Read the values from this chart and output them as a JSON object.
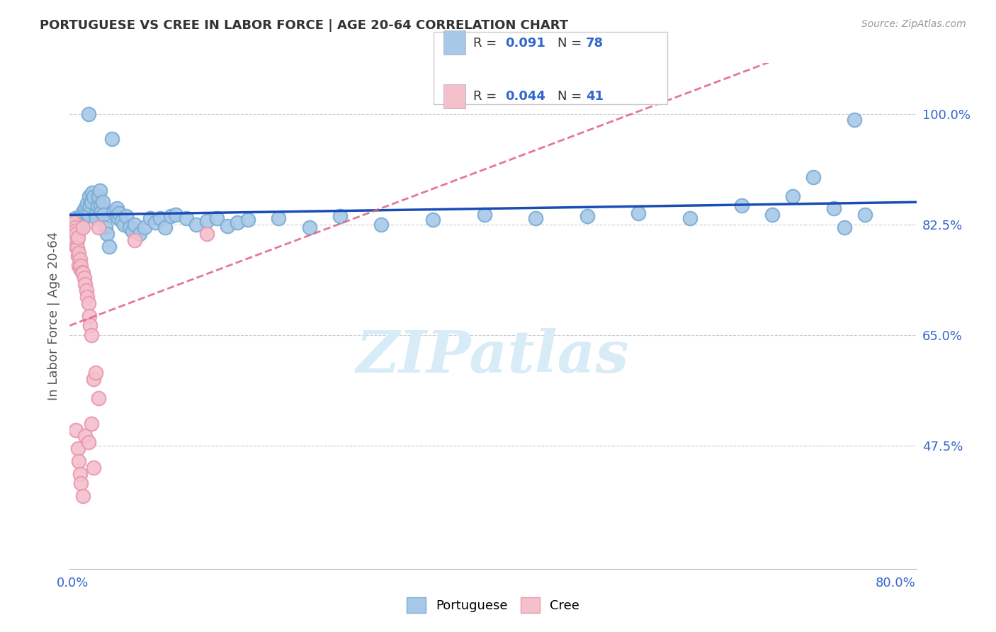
{
  "title": "PORTUGUESE VS CREE IN LABOR FORCE | AGE 20-64 CORRELATION CHART",
  "source": "Source: ZipAtlas.com",
  "ylabel": "In Labor Force | Age 20-64",
  "xlim": [
    -0.003,
    0.82
  ],
  "ylim": [
    0.28,
    1.08
  ],
  "x_tick_labels": [
    "0.0%",
    "80.0%"
  ],
  "x_tick_vals": [
    0.0,
    0.8
  ],
  "y_tick_labels_right": [
    "100.0%",
    "82.5%",
    "65.0%",
    "47.5%"
  ],
  "y_tick_vals_right": [
    1.0,
    0.825,
    0.65,
    0.475
  ],
  "portuguese_color": "#a8c8e8",
  "portuguese_edge_color": "#7aadd4",
  "cree_color": "#f4c0cc",
  "cree_edge_color": "#e898b0",
  "trendline_portuguese_color": "#1a4db5",
  "trendline_cree_color": "#e06080",
  "title_color": "#333333",
  "axis_label_color": "#3366cc",
  "source_color": "#999999",
  "grid_color": "#cccccc",
  "watermark_color": "#d8ecf8",
  "legend_R_color": "#333333",
  "legend_N_color": "#3366cc",
  "portuguese_points": [
    [
      0.001,
      0.83
    ],
    [
      0.002,
      0.835
    ],
    [
      0.003,
      0.825
    ],
    [
      0.004,
      0.828
    ],
    [
      0.005,
      0.832
    ],
    [
      0.006,
      0.82
    ],
    [
      0.007,
      0.838
    ],
    [
      0.008,
      0.822
    ],
    [
      0.009,
      0.83
    ],
    [
      0.01,
      0.845
    ],
    [
      0.011,
      0.84
    ],
    [
      0.012,
      0.85
    ],
    [
      0.013,
      0.842
    ],
    [
      0.014,
      0.858
    ],
    [
      0.015,
      0.84
    ],
    [
      0.015,
      1.0
    ],
    [
      0.016,
      0.87
    ],
    [
      0.017,
      0.855
    ],
    [
      0.018,
      0.86
    ],
    [
      0.019,
      0.875
    ],
    [
      0.02,
      0.868
    ],
    [
      0.022,
      0.84
    ],
    [
      0.023,
      0.835
    ],
    [
      0.024,
      0.855
    ],
    [
      0.025,
      0.87
    ],
    [
      0.026,
      0.878
    ],
    [
      0.027,
      0.855
    ],
    [
      0.028,
      0.845
    ],
    [
      0.029,
      0.86
    ],
    [
      0.03,
      0.84
    ],
    [
      0.032,
      0.82
    ],
    [
      0.033,
      0.81
    ],
    [
      0.035,
      0.79
    ],
    [
      0.038,
      0.96
    ],
    [
      0.04,
      0.845
    ],
    [
      0.042,
      0.838
    ],
    [
      0.043,
      0.85
    ],
    [
      0.044,
      0.835
    ],
    [
      0.045,
      0.842
    ],
    [
      0.048,
      0.83
    ],
    [
      0.05,
      0.825
    ],
    [
      0.052,
      0.838
    ],
    [
      0.055,
      0.82
    ],
    [
      0.058,
      0.815
    ],
    [
      0.06,
      0.825
    ],
    [
      0.065,
      0.81
    ],
    [
      0.07,
      0.82
    ],
    [
      0.075,
      0.835
    ],
    [
      0.08,
      0.828
    ],
    [
      0.085,
      0.835
    ],
    [
      0.09,
      0.82
    ],
    [
      0.095,
      0.838
    ],
    [
      0.1,
      0.84
    ],
    [
      0.11,
      0.835
    ],
    [
      0.12,
      0.825
    ],
    [
      0.13,
      0.83
    ],
    [
      0.14,
      0.835
    ],
    [
      0.15,
      0.822
    ],
    [
      0.16,
      0.828
    ],
    [
      0.17,
      0.832
    ],
    [
      0.2,
      0.835
    ],
    [
      0.23,
      0.82
    ],
    [
      0.26,
      0.838
    ],
    [
      0.3,
      0.825
    ],
    [
      0.35,
      0.832
    ],
    [
      0.4,
      0.84
    ],
    [
      0.45,
      0.835
    ],
    [
      0.5,
      0.838
    ],
    [
      0.55,
      0.842
    ],
    [
      0.6,
      0.835
    ],
    [
      0.65,
      0.855
    ],
    [
      0.68,
      0.84
    ],
    [
      0.7,
      0.87
    ],
    [
      0.72,
      0.9
    ],
    [
      0.74,
      0.85
    ],
    [
      0.75,
      0.82
    ],
    [
      0.76,
      0.99
    ],
    [
      0.77,
      0.84
    ]
  ],
  "cree_points": [
    [
      0.001,
      0.828
    ],
    [
      0.002,
      0.82
    ],
    [
      0.002,
      0.815
    ],
    [
      0.003,
      0.81
    ],
    [
      0.003,
      0.79
    ],
    [
      0.004,
      0.8
    ],
    [
      0.004,
      0.788
    ],
    [
      0.005,
      0.805
    ],
    [
      0.005,
      0.775
    ],
    [
      0.006,
      0.78
    ],
    [
      0.006,
      0.76
    ],
    [
      0.007,
      0.77
    ],
    [
      0.007,
      0.755
    ],
    [
      0.008,
      0.76
    ],
    [
      0.009,
      0.75
    ],
    [
      0.01,
      0.748
    ],
    [
      0.01,
      0.82
    ],
    [
      0.011,
      0.74
    ],
    [
      0.012,
      0.73
    ],
    [
      0.013,
      0.72
    ],
    [
      0.014,
      0.71
    ],
    [
      0.015,
      0.7
    ],
    [
      0.016,
      0.68
    ],
    [
      0.017,
      0.665
    ],
    [
      0.018,
      0.65
    ],
    [
      0.02,
      0.58
    ],
    [
      0.022,
      0.59
    ],
    [
      0.025,
      0.82
    ],
    [
      0.003,
      0.5
    ],
    [
      0.005,
      0.47
    ],
    [
      0.006,
      0.45
    ],
    [
      0.007,
      0.43
    ],
    [
      0.008,
      0.415
    ],
    [
      0.01,
      0.395
    ],
    [
      0.012,
      0.49
    ],
    [
      0.015,
      0.48
    ],
    [
      0.018,
      0.51
    ],
    [
      0.02,
      0.44
    ],
    [
      0.025,
      0.55
    ],
    [
      0.06,
      0.8
    ],
    [
      0.13,
      0.81
    ]
  ]
}
